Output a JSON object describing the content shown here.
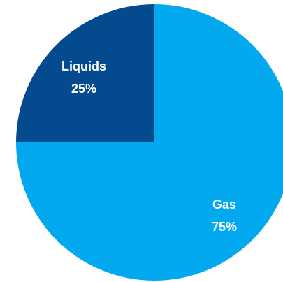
{
  "chart_data": {
    "type": "pie",
    "slices": [
      {
        "label": "Liquids",
        "value": 25,
        "value_label": "25%",
        "color": "#034a8e"
      },
      {
        "label": "Gas",
        "value": 75,
        "value_label": "75%",
        "color": "#03a9ef"
      }
    ],
    "start_angle": 270,
    "direction": "clockwise"
  }
}
